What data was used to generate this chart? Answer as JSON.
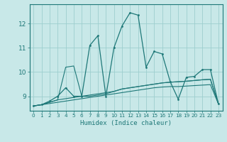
{
  "xlabel": "Humidex (Indice chaleur)",
  "background_color": "#c8e8e8",
  "grid_color": "#9ecece",
  "line_color": "#1e7878",
  "xlim": [
    -0.5,
    23.5
  ],
  "ylim": [
    8.4,
    12.8
  ],
  "yticks": [
    9,
    10,
    11,
    12
  ],
  "xticks": [
    0,
    1,
    2,
    3,
    4,
    5,
    6,
    7,
    8,
    9,
    10,
    11,
    12,
    13,
    14,
    15,
    16,
    17,
    18,
    19,
    20,
    21,
    22,
    23
  ],
  "series1": [
    8.6,
    8.65,
    8.8,
    9.0,
    9.35,
    9.0,
    9.0,
    11.1,
    11.5,
    9.0,
    11.0,
    11.9,
    12.45,
    12.35,
    10.2,
    10.85,
    10.75,
    9.6,
    8.88,
    9.78,
    9.82,
    10.1,
    10.1,
    8.68
  ],
  "series2": [
    8.6,
    8.65,
    8.75,
    8.85,
    10.2,
    10.25,
    9.0,
    9.0,
    9.05,
    9.1,
    9.2,
    9.3,
    9.35,
    9.4,
    9.45,
    9.5,
    9.55,
    9.58,
    9.6,
    9.62,
    9.65,
    9.68,
    9.7,
    8.68
  ],
  "series3": [
    8.6,
    8.65,
    8.75,
    8.85,
    8.9,
    8.95,
    9.0,
    9.05,
    9.1,
    9.15,
    9.2,
    9.3,
    9.35,
    9.4,
    9.45,
    9.5,
    9.55,
    9.58,
    9.6,
    9.62,
    9.65,
    9.68,
    9.7,
    8.68
  ],
  "series4": [
    8.6,
    8.65,
    8.7,
    8.75,
    8.8,
    8.85,
    8.9,
    8.95,
    9.0,
    9.05,
    9.1,
    9.15,
    9.2,
    9.25,
    9.3,
    9.35,
    9.38,
    9.4,
    9.4,
    9.42,
    9.44,
    9.46,
    9.48,
    8.68
  ]
}
